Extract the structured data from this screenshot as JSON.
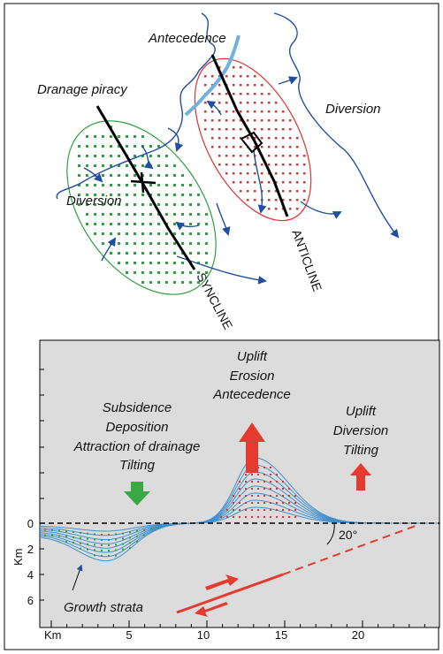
{
  "map": {
    "antecedence": "Antecedence",
    "piracy": "Dranage piracy",
    "diversion_right": "Diversion",
    "diversion_left": "Diversion",
    "syncline": "SYNCLINE",
    "anticline": "ANTICLINE"
  },
  "section": {
    "center": [
      "Uplift",
      "Erosion",
      "Antecedence"
    ],
    "left": [
      "Subsidence",
      "Deposition",
      "Attraction of drainage",
      "Tilting"
    ],
    "right": [
      "Uplift",
      "Diversion",
      "Tilting"
    ],
    "growth_strata": "Growth strata",
    "angle": "20°"
  },
  "axes": {
    "x_label": "Km",
    "y_label": "Km",
    "xticks": [
      "5",
      "10",
      "15",
      "20"
    ],
    "yticks": [
      "0",
      "2",
      "4",
      "6"
    ]
  }
}
